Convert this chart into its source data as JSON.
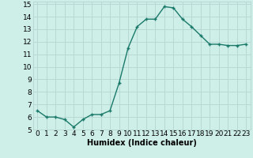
{
  "x": [
    0,
    1,
    2,
    3,
    4,
    5,
    6,
    7,
    8,
    9,
    10,
    11,
    12,
    13,
    14,
    15,
    16,
    17,
    18,
    19,
    20,
    21,
    22,
    23
  ],
  "y": [
    6.5,
    6.0,
    6.0,
    5.8,
    5.2,
    5.8,
    6.2,
    6.2,
    6.5,
    8.7,
    11.5,
    13.2,
    13.8,
    13.8,
    14.8,
    14.7,
    13.8,
    13.2,
    12.5,
    11.8,
    11.8,
    11.7,
    11.7,
    11.8
  ],
  "line_color": "#1a7a6a",
  "marker": "+",
  "marker_color": "#1a7a6a",
  "background_color": "#ceeee8",
  "grid_color": "#b8d8d4",
  "xlabel": "Humidex (Indice chaleur)",
  "xlim": [
    -0.5,
    23.5
  ],
  "ylim": [
    5,
    15.2
  ],
  "xticks": [
    0,
    1,
    2,
    3,
    4,
    5,
    6,
    7,
    8,
    9,
    10,
    11,
    12,
    13,
    14,
    15,
    16,
    17,
    18,
    19,
    20,
    21,
    22,
    23
  ],
  "yticks": [
    5,
    6,
    7,
    8,
    9,
    10,
    11,
    12,
    13,
    14,
    15
  ],
  "xlabel_fontsize": 7,
  "tick_fontsize": 6.5,
  "linewidth": 1.0,
  "markersize": 3.5
}
